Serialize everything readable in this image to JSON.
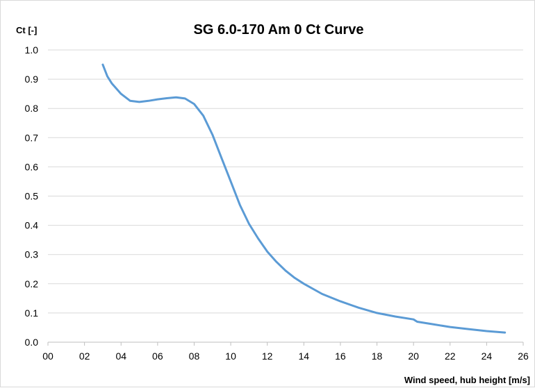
{
  "chart_data": {
    "type": "line",
    "title": "SG 6.0-170 Am 0 Ct Curve",
    "ylabel": "Ct [-]",
    "xlabel": "Wind speed, hub height [m/s]",
    "xlim": [
      0,
      26
    ],
    "ylim": [
      0,
      1.0
    ],
    "x_ticks": [
      "00",
      "02",
      "04",
      "06",
      "08",
      "10",
      "12",
      "14",
      "16",
      "18",
      "20",
      "22",
      "24",
      "26"
    ],
    "y_ticks": [
      "0.0",
      "0.1",
      "0.2",
      "0.3",
      "0.4",
      "0.5",
      "0.6",
      "0.7",
      "0.8",
      "0.9",
      "1.0"
    ],
    "grid": "horizontal",
    "color": "#5b9bd5",
    "series": [
      {
        "x": [
          3.0,
          3.25,
          3.5,
          4.0,
          4.5,
          5.0,
          5.5,
          6.0,
          6.5,
          7.0,
          7.5,
          8.0,
          8.5,
          9.0,
          9.5,
          10.0,
          10.5,
          11.0,
          11.5,
          12.0,
          12.5,
          13.0,
          13.5,
          14.0,
          15.0,
          16.0,
          17.0,
          18.0,
          19.0,
          20.0,
          20.2,
          21.0,
          22.0,
          23.0,
          24.0,
          25.0
        ],
        "y": [
          0.95,
          0.91,
          0.885,
          0.85,
          0.826,
          0.822,
          0.826,
          0.831,
          0.835,
          0.838,
          0.834,
          0.815,
          0.775,
          0.71,
          0.63,
          0.55,
          0.47,
          0.405,
          0.355,
          0.31,
          0.275,
          0.245,
          0.22,
          0.2,
          0.165,
          0.14,
          0.118,
          0.1,
          0.088,
          0.078,
          0.07,
          0.062,
          0.052,
          0.045,
          0.038,
          0.033
        ]
      }
    ]
  }
}
